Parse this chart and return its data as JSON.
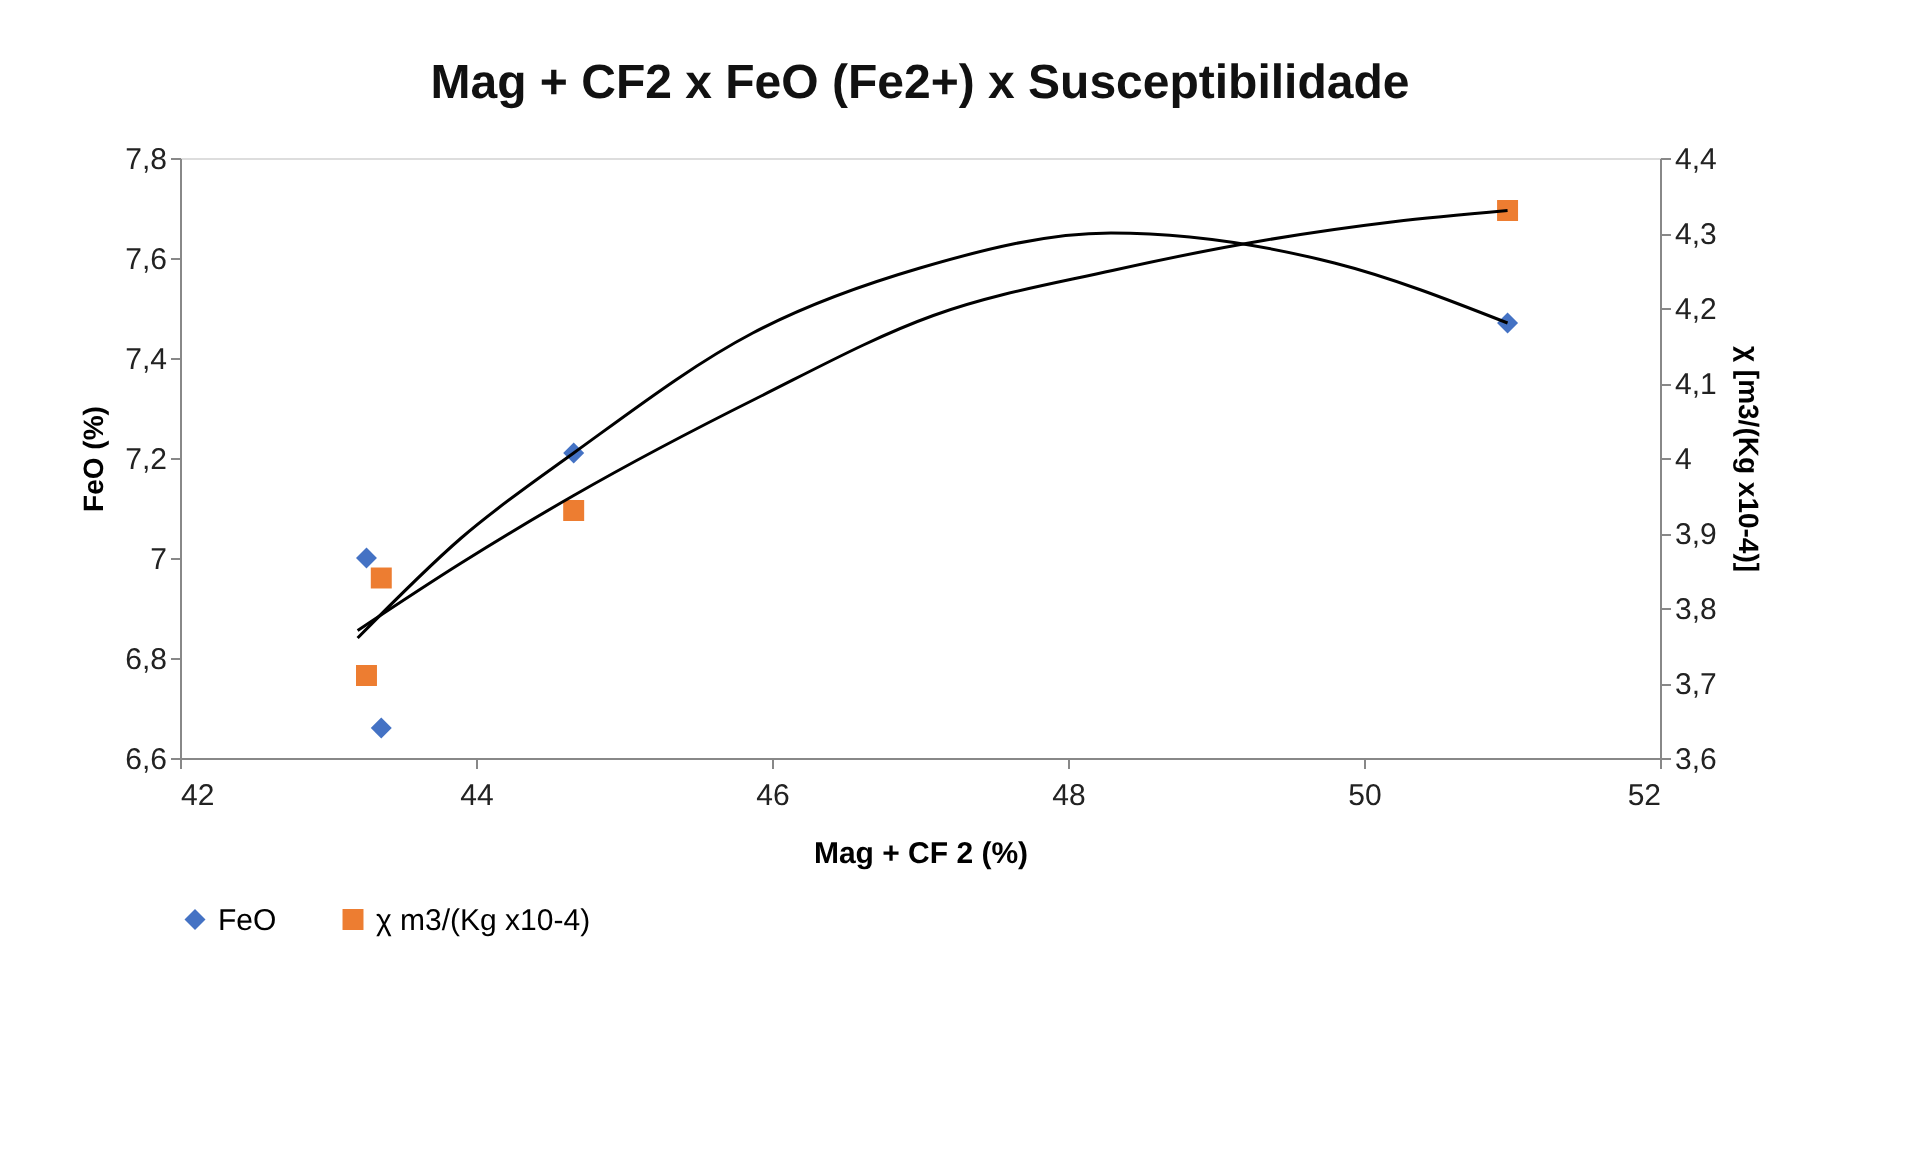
{
  "chart_data": {
    "type": "scatter",
    "title": "Mag + CF2 x FeO (Fe2+) x Susceptibilidade",
    "xlabel": "Mag + CF 2 (%)",
    "ylabel": "FeO (%)",
    "y2label": "χ [m3/(Kg x10-4)]",
    "xlim": [
      42,
      52
    ],
    "xticks": [
      42,
      44,
      46,
      48,
      50,
      52
    ],
    "ylim": [
      6.6,
      7.8
    ],
    "yticks": [
      {
        "value": 6.6,
        "label": "6,6"
      },
      {
        "value": 6.8,
        "label": "6,8"
      },
      7,
      {
        "value": 7.2,
        "label": "7,2"
      },
      {
        "value": 7.4,
        "label": "7,4"
      },
      {
        "value": 7.6,
        "label": "7,6"
      },
      {
        "value": 7.8,
        "label": "7,8"
      }
    ],
    "y2lim": [
      3.6,
      4.4
    ],
    "y2ticks": [
      {
        "value": 3.6,
        "label": "3,6"
      },
      {
        "value": 3.7,
        "label": "3,7"
      },
      {
        "value": 3.8,
        "label": "3,8"
      },
      {
        "value": 3.9,
        "label": "3,9"
      },
      4,
      {
        "value": 4.1,
        "label": "4,1"
      },
      {
        "value": 4.2,
        "label": "4,2"
      },
      {
        "value": 4.3,
        "label": "4,3"
      },
      {
        "value": 4.4,
        "label": "4,4"
      }
    ],
    "grid": false,
    "legend": "bottom",
    "series": [
      {
        "name": "FeO",
        "marker": "diamond",
        "color": "#4472c4",
        "x": [
          43.26,
          43.36,
          44.66,
          50.97
        ],
        "values": [
          7.0,
          6.66,
          7.21,
          7.47
        ]
      },
      {
        "name": "χ m3/(Kg x10-4)",
        "marker": "square",
        "color": "#ed7d31",
        "axis": "y2",
        "x": [
          43.26,
          43.36,
          44.66,
          50.97
        ],
        "values": [
          3.71,
          3.84,
          3.93,
          4.33
        ]
      },
      {
        "type": "line",
        "marker": "none",
        "color": "#000000",
        "x": [
          43.2,
          43.9,
          44.66,
          45.87,
          47.0,
          48.29,
          49.8,
          50.97
        ],
        "values": [
          6.84,
          7.04,
          7.21,
          7.45,
          7.58,
          7.65,
          7.59,
          7.47
        ]
      },
      {
        "type": "line",
        "marker": "none",
        "color": "#000000",
        "axis": "y2",
        "x": [
          43.2,
          43.9,
          44.66,
          45.9,
          47.09,
          48.3,
          49.32,
          50.2,
          50.97
        ],
        "values": [
          3.77,
          3.86,
          3.95,
          4.08,
          4.19,
          4.25,
          4.29,
          4.315,
          4.33
        ]
      }
    ]
  }
}
